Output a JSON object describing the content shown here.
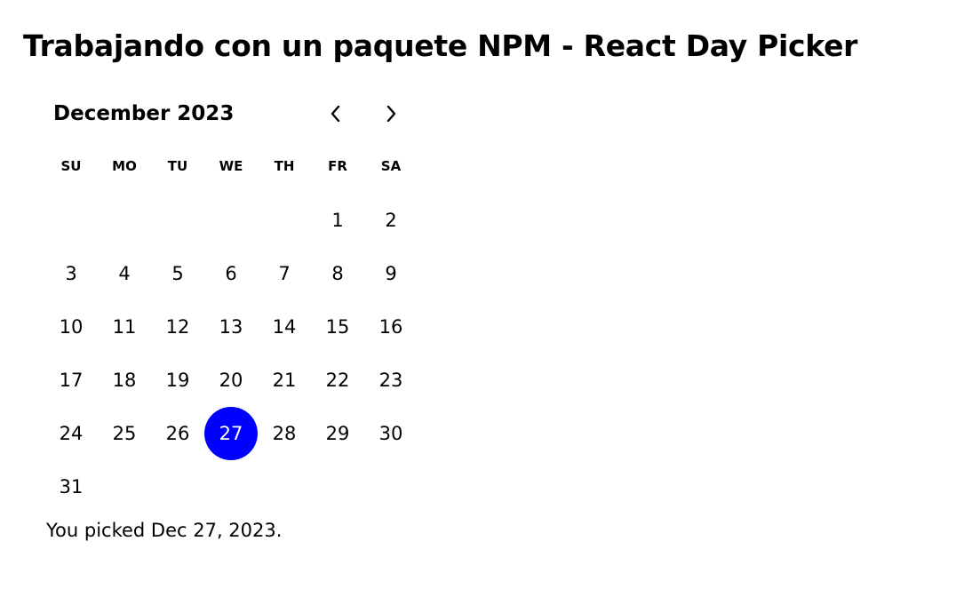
{
  "page": {
    "title": "Trabajando con un paquete NPM - React Day Picker"
  },
  "calendar": {
    "caption": "December 2023",
    "prev_icon": "chevron-left-icon",
    "next_icon": "chevron-right-icon",
    "weekdays": [
      "SU",
      "MO",
      "TU",
      "WE",
      "TH",
      "FR",
      "SA"
    ],
    "weeks": [
      [
        "",
        "",
        "",
        "",
        "",
        "1",
        "2"
      ],
      [
        "3",
        "4",
        "5",
        "6",
        "7",
        "8",
        "9"
      ],
      [
        "10",
        "11",
        "12",
        "13",
        "14",
        "15",
        "16"
      ],
      [
        "17",
        "18",
        "19",
        "20",
        "21",
        "22",
        "23"
      ],
      [
        "24",
        "25",
        "26",
        "27",
        "28",
        "29",
        "30"
      ],
      [
        "31",
        "",
        "",
        "",
        "",
        "",
        ""
      ]
    ],
    "selected_day": "27",
    "selected_color": "#0000ff"
  },
  "footer": {
    "picked_text": "You picked Dec 27, 2023."
  }
}
